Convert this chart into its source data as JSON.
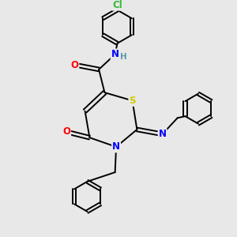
{
  "bg_color": "#e8e8e8",
  "atom_colors": {
    "S": "#cccc00",
    "N": "#0000ff",
    "O": "#ff0000",
    "Cl": "#33bb33",
    "H": "#5599aa"
  },
  "font_size": 8.5,
  "bond_width": 1.4
}
